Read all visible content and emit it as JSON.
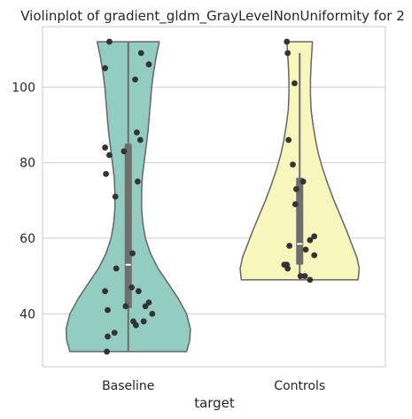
{
  "chart_data": {
    "type": "violin",
    "title": "Violinplot of gradient_gldm_GrayLevelNonUniformity for 2",
    "xlabel": "target",
    "ylabel": "",
    "categories": [
      "Baseline",
      "Controls"
    ],
    "ylim": [
      26,
      116
    ],
    "yticks": [
      40,
      60,
      80,
      100
    ],
    "grid": true,
    "colors": {
      "Baseline": "#93ccc1",
      "Controls": "#f7f7bd",
      "outline": "#666666",
      "points": "#333333",
      "box": "#6e6e6e",
      "median": "#ffffff",
      "grid": "#d0d0d0"
    },
    "series": [
      {
        "category": "Baseline",
        "min": 30,
        "q1": 41.5,
        "median": 53,
        "q3": 85,
        "max": 112,
        "density": [
          [
            30,
            0.92
          ],
          [
            33,
            0.97
          ],
          [
            36,
            0.98
          ],
          [
            40,
            0.92
          ],
          [
            44,
            0.79
          ],
          [
            48,
            0.63
          ],
          [
            52,
            0.47
          ],
          [
            56,
            0.35
          ],
          [
            60,
            0.27
          ],
          [
            64,
            0.23
          ],
          [
            68,
            0.21
          ],
          [
            72,
            0.21
          ],
          [
            76,
            0.22
          ],
          [
            80,
            0.25
          ],
          [
            84,
            0.28
          ],
          [
            88,
            0.31
          ],
          [
            92,
            0.33
          ],
          [
            96,
            0.35
          ],
          [
            100,
            0.37
          ],
          [
            104,
            0.4
          ],
          [
            108,
            0.44
          ],
          [
            112,
            0.49
          ]
        ],
        "points": [
          [
            112,
            -0.22
          ],
          [
            109,
            0.15
          ],
          [
            106,
            0.24
          ],
          [
            105,
            -0.27
          ],
          [
            102,
            0.08
          ],
          [
            88,
            0.1
          ],
          [
            86,
            0.14
          ],
          [
            84,
            -0.27
          ],
          [
            83,
            -0.05
          ],
          [
            82,
            -0.22
          ],
          [
            77,
            -0.26
          ],
          [
            75,
            0.11
          ],
          [
            71,
            -0.15
          ],
          [
            56,
            0.05
          ],
          [
            52,
            -0.14
          ],
          [
            47,
            0.04
          ],
          [
            46,
            0.12
          ],
          [
            46,
            -0.27
          ],
          [
            43,
            0.24
          ],
          [
            42,
            0.2
          ],
          [
            42,
            -0.03
          ],
          [
            41,
            -0.24
          ],
          [
            40,
            0.28
          ],
          [
            38,
            0.18
          ],
          [
            38,
            0.06
          ],
          [
            37,
            0.09
          ],
          [
            35,
            -0.16
          ],
          [
            34,
            -0.24
          ],
          [
            30,
            -0.25
          ]
        ]
      },
      {
        "category": "Controls",
        "min": 49,
        "q1": 53,
        "median": 58.5,
        "q3": 76,
        "max": 109,
        "density": [
          [
            49,
            0.92
          ],
          [
            52,
            0.94
          ],
          [
            55,
            0.9
          ],
          [
            58,
            0.83
          ],
          [
            62,
            0.74
          ],
          [
            66,
            0.64
          ],
          [
            70,
            0.54
          ],
          [
            74,
            0.45
          ],
          [
            78,
            0.37
          ],
          [
            82,
            0.3
          ],
          [
            86,
            0.25
          ],
          [
            90,
            0.21
          ],
          [
            94,
            0.18
          ],
          [
            98,
            0.17
          ],
          [
            102,
            0.17
          ],
          [
            106,
            0.18
          ],
          [
            109,
            0.19
          ],
          [
            112,
            0.2
          ]
        ],
        "points": [
          [
            112,
            -0.15
          ],
          [
            109,
            -0.14
          ],
          [
            101,
            -0.06
          ],
          [
            86,
            -0.13
          ],
          [
            79.5,
            -0.08
          ],
          [
            75,
            0.04
          ],
          [
            73,
            -0.04
          ],
          [
            69,
            -0.05
          ],
          [
            60.5,
            0.17
          ],
          [
            59.5,
            0.12
          ],
          [
            58,
            -0.12
          ],
          [
            57,
            0.07
          ],
          [
            55.5,
            0.17
          ],
          [
            53,
            -0.15
          ],
          [
            53,
            -0.18
          ],
          [
            52,
            -0.14
          ],
          [
            50,
            0.06
          ],
          [
            50,
            0.01
          ],
          [
            49,
            0.12
          ]
        ]
      }
    ]
  }
}
